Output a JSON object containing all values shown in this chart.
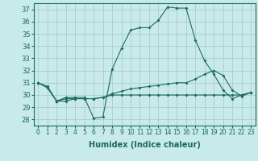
{
  "xlabel": "Humidex (Indice chaleur)",
  "background_color": "#c8eaea",
  "grid_color": "#b0d0cc",
  "line_color": "#1a6b5a",
  "xlim": [
    -0.5,
    23.5
  ],
  "ylim": [
    27.5,
    37.5
  ],
  "yticks": [
    28,
    29,
    30,
    31,
    32,
    33,
    34,
    35,
    36,
    37
  ],
  "xticks": [
    0,
    1,
    2,
    3,
    4,
    5,
    6,
    7,
    8,
    9,
    10,
    11,
    12,
    13,
    14,
    15,
    16,
    17,
    18,
    19,
    20,
    21,
    22,
    23
  ],
  "series": [
    [
      31.0,
      30.7,
      29.5,
      29.8,
      29.8,
      29.8,
      28.1,
      28.2,
      32.1,
      33.8,
      35.3,
      35.5,
      35.5,
      36.1,
      37.2,
      37.1,
      37.1,
      34.5,
      32.8,
      31.7,
      30.4,
      29.7,
      30.0,
      30.2
    ],
    [
      31.0,
      30.6,
      29.5,
      29.7,
      29.7,
      29.7,
      29.7,
      29.8,
      30.1,
      30.3,
      30.5,
      30.6,
      30.7,
      30.8,
      30.9,
      31.0,
      31.0,
      31.3,
      31.7,
      32.0,
      31.6,
      30.4,
      29.9,
      30.2
    ],
    [
      31.0,
      30.6,
      29.5,
      29.5,
      29.7,
      29.7,
      29.7,
      29.8,
      30.0,
      30.0,
      30.0,
      30.0,
      30.0,
      30.0,
      30.0,
      30.0,
      30.0,
      30.0,
      30.0,
      30.0,
      30.0,
      30.0,
      30.0,
      30.2
    ]
  ]
}
